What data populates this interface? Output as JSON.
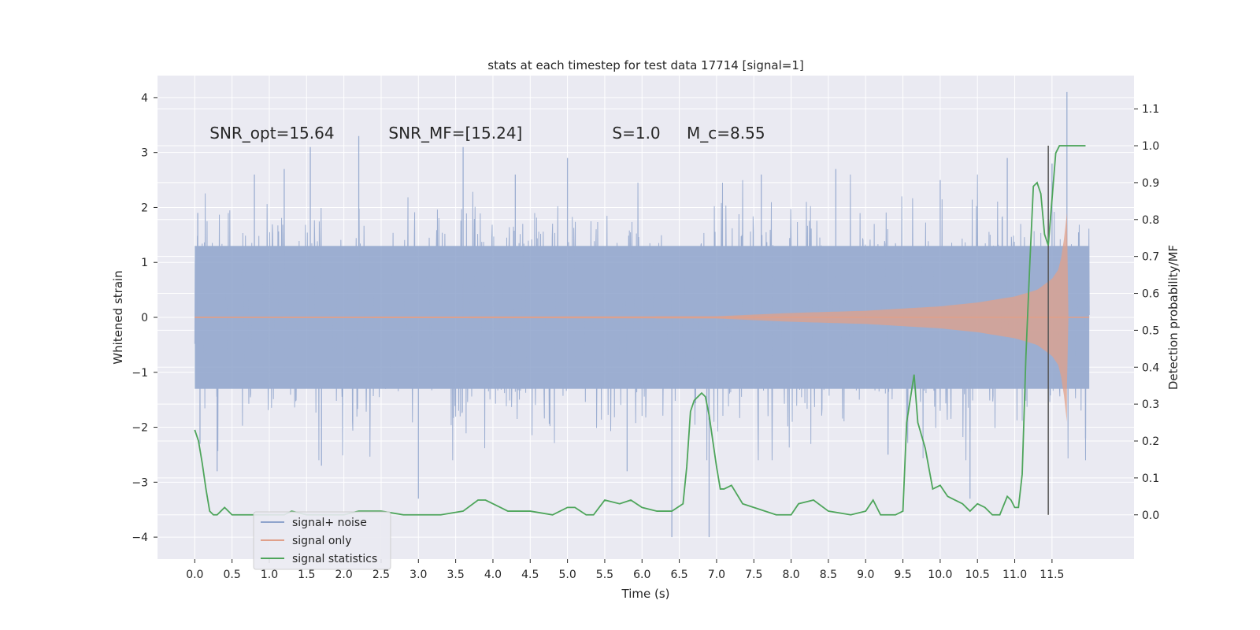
{
  "chart_data": {
    "type": "line",
    "title": "stats at each timestep for test data 17714 [signal=1]",
    "xlabel": "Time (s)",
    "ylabel": "Whitened strain",
    "y2label": "Detection probability/MF",
    "xlim": [
      -0.5,
      12.6
    ],
    "ylim": [
      -4.4,
      4.4
    ],
    "y2lim": [
      -0.12,
      1.19
    ],
    "x_ticks": [
      0.0,
      0.5,
      1.0,
      1.5,
      2.0,
      2.5,
      3.0,
      3.5,
      4.0,
      4.5,
      5.0,
      5.5,
      6.0,
      6.5,
      7.0,
      7.5,
      8.0,
      8.5,
      9.0,
      9.5,
      10.0,
      10.5,
      11.0,
      11.5
    ],
    "x_tick_labels": [
      "0.0",
      "0.5",
      "1.0",
      "1.5",
      "2.0",
      "2.5",
      "3.0",
      "3.5",
      "4.0",
      "4.5",
      "5.0",
      "5.5",
      "6.0",
      "6.5",
      "7.0",
      "7.5",
      "8.0",
      "8.5",
      "9.0",
      "9.5",
      "10.0",
      "10.5",
      "11.0",
      "11.5"
    ],
    "y_ticks": [
      -4,
      -3,
      -2,
      -1,
      0,
      1,
      2,
      3,
      4
    ],
    "y_tick_labels": [
      "−4",
      "−3",
      "−2",
      "−1",
      "0",
      "1",
      "2",
      "3",
      "4"
    ],
    "y2_ticks": [
      0.0,
      0.1,
      0.2,
      0.3,
      0.4,
      0.5,
      0.6,
      0.7,
      0.8,
      0.9,
      1.0,
      1.1
    ],
    "y2_tick_labels": [
      "0.0",
      "0.1",
      "0.2",
      "0.3",
      "0.4",
      "0.5",
      "0.6",
      "0.7",
      "0.8",
      "0.9",
      "1.0",
      "1.1"
    ],
    "annotations": [
      {
        "text": "SNR_opt=15.64",
        "x": 0.2,
        "y": 3.25
      },
      {
        "text": "SNR_MF=[15.24]",
        "x": 2.6,
        "y": 3.25
      },
      {
        "text": "S=1.0",
        "x": 5.6,
        "y": 3.25
      },
      {
        "text": "M_c=8.55",
        "x": 6.6,
        "y": 3.25
      }
    ],
    "vline": {
      "x": 11.45,
      "y2_range": [
        0.0,
        1.0
      ]
    },
    "legend": {
      "location": "lower-left",
      "entries": [
        "signal+ noise",
        "signal only",
        "signal statistics"
      ]
    },
    "series": [
      {
        "name": "signal+ noise",
        "axis": "left",
        "color": "#8fa4cc",
        "x_range": [
          0.0,
          12.0
        ],
        "core_band": [
          -1.3,
          1.3
        ],
        "spikes": [
          [
            0.04,
            1.9
          ],
          [
            0.07,
            -2.3
          ],
          [
            0.3,
            -2.8
          ],
          [
            0.8,
            2.6
          ],
          [
            1.2,
            2.7
          ],
          [
            1.55,
            3.1
          ],
          [
            1.7,
            -2.7
          ],
          [
            2.2,
            3.3
          ],
          [
            3.0,
            -3.3
          ],
          [
            3.6,
            3.1
          ],
          [
            4.3,
            2.6
          ],
          [
            5.0,
            2.9
          ],
          [
            5.8,
            -2.8
          ],
          [
            6.4,
            -4.0
          ],
          [
            6.9,
            -4.0
          ],
          [
            7.6,
            2.6
          ],
          [
            8.6,
            2.7
          ],
          [
            9.3,
            -2.5
          ],
          [
            10.0,
            2.5
          ],
          [
            10.4,
            -3.3
          ],
          [
            10.9,
            2.9
          ],
          [
            11.5,
            2.8
          ],
          [
            11.7,
            4.1
          ],
          [
            11.95,
            -2.2
          ]
        ]
      },
      {
        "name": "signal only",
        "axis": "left",
        "color": "#e0a08a",
        "x": [
          0.0,
          7.0,
          8.0,
          9.0,
          10.0,
          10.5,
          11.0,
          11.3,
          11.5,
          11.6,
          11.65,
          11.7
        ],
        "amplitude": [
          0.01,
          0.02,
          0.08,
          0.12,
          0.2,
          0.27,
          0.38,
          0.5,
          0.7,
          0.9,
          1.3,
          1.9
        ]
      },
      {
        "name": "signal statistics",
        "axis": "right",
        "color": "#4ea55b",
        "x": [
          0.0,
          0.05,
          0.1,
          0.15,
          0.2,
          0.25,
          0.3,
          0.35,
          0.4,
          0.5,
          0.6,
          0.7,
          0.8,
          1.0,
          1.2,
          1.3,
          1.5,
          1.8,
          2.0,
          2.2,
          2.5,
          2.8,
          3.0,
          3.3,
          3.6,
          3.8,
          3.9,
          4.0,
          4.2,
          4.5,
          4.8,
          5.0,
          5.1,
          5.25,
          5.35,
          5.5,
          5.7,
          5.85,
          6.0,
          6.2,
          6.4,
          6.55,
          6.6,
          6.65,
          6.7,
          6.8,
          6.85,
          6.9,
          7.0,
          7.05,
          7.1,
          7.2,
          7.35,
          7.5,
          7.8,
          8.0,
          8.1,
          8.3,
          8.5,
          8.8,
          9.0,
          9.1,
          9.2,
          9.4,
          9.5,
          9.55,
          9.65,
          9.7,
          9.8,
          9.9,
          10.0,
          10.1,
          10.2,
          10.3,
          10.4,
          10.5,
          10.6,
          10.7,
          10.8,
          10.9,
          10.95,
          11.0,
          11.05,
          11.1,
          11.15,
          11.2,
          11.25,
          11.3,
          11.35,
          11.4,
          11.45,
          11.55,
          11.6,
          11.65,
          11.7,
          11.8,
          11.9,
          11.95
        ],
        "values": [
          0.23,
          0.2,
          0.14,
          0.07,
          0.01,
          0.0,
          0.0,
          0.01,
          0.02,
          0.0,
          0.0,
          0.0,
          0.0,
          0.0,
          0.0,
          0.01,
          0.0,
          0.0,
          0.0,
          0.01,
          0.01,
          0.0,
          0.0,
          0.0,
          0.01,
          0.04,
          0.04,
          0.03,
          0.01,
          0.01,
          0.0,
          0.02,
          0.02,
          0.0,
          0.0,
          0.04,
          0.03,
          0.04,
          0.02,
          0.01,
          0.01,
          0.03,
          0.13,
          0.28,
          0.31,
          0.33,
          0.32,
          0.27,
          0.13,
          0.07,
          0.07,
          0.08,
          0.03,
          0.02,
          0.0,
          0.0,
          0.03,
          0.04,
          0.01,
          0.0,
          0.01,
          0.04,
          0.0,
          0.0,
          0.01,
          0.25,
          0.38,
          0.25,
          0.18,
          0.07,
          0.08,
          0.05,
          0.04,
          0.03,
          0.01,
          0.03,
          0.02,
          0.0,
          0.0,
          0.05,
          0.04,
          0.02,
          0.02,
          0.11,
          0.43,
          0.67,
          0.89,
          0.9,
          0.87,
          0.76,
          0.73,
          0.98,
          1.0,
          1.0,
          1.0,
          1.0,
          1.0,
          1.0
        ]
      }
    ]
  }
}
